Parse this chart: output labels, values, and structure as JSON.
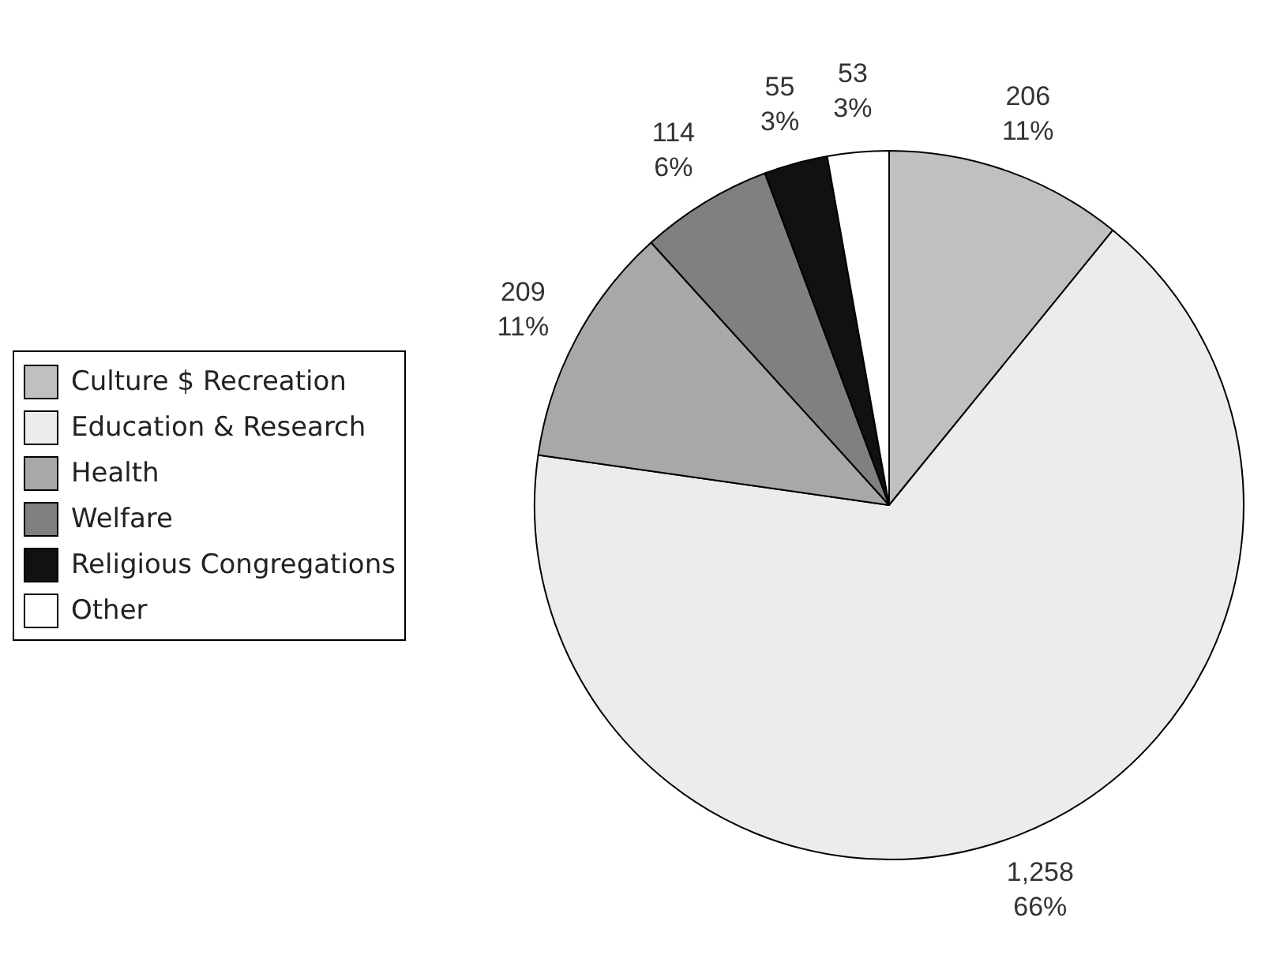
{
  "chart_data": {
    "type": "pie",
    "categories": [
      "Culture $ Recreation",
      "Education & Research",
      "Health",
      "Welfare",
      "Religious Congregations",
      "Other"
    ],
    "values": [
      206,
      1258,
      209,
      114,
      55,
      53
    ],
    "colors": [
      "#c0c0c0",
      "#ececec",
      "#a8a8a8",
      "#808080",
      "#111111",
      "#ffffff"
    ],
    "value_labels": [
      "206\n11%",
      "1,258\n66%",
      "209\n11%",
      "114\n6%",
      "55\n3%",
      "53\n3%"
    ],
    "legend": "left"
  }
}
